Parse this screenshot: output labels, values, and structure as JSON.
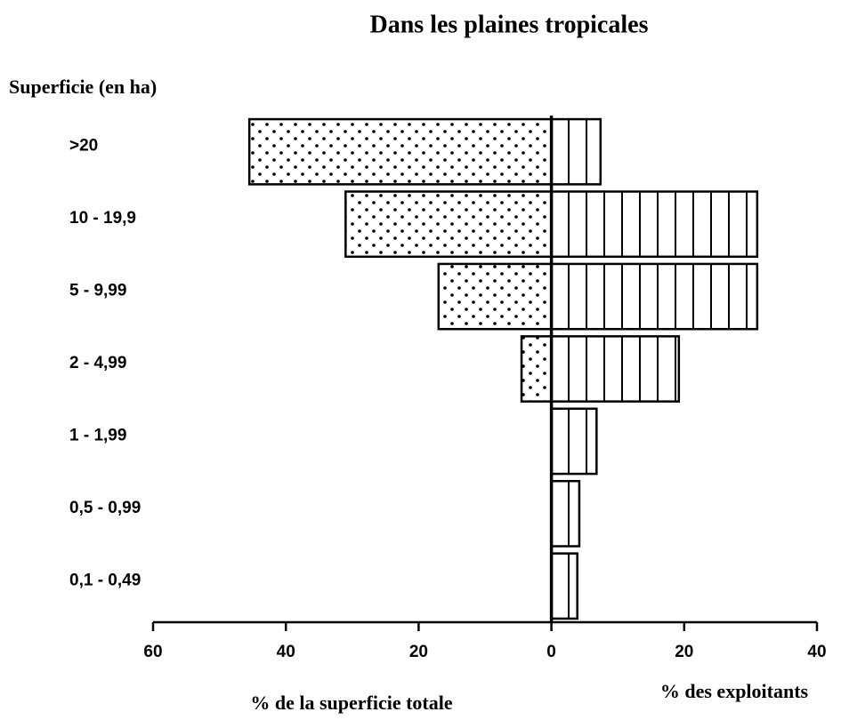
{
  "chart_data": {
    "type": "bar",
    "orientation": "horizontal",
    "title": "Dans les plaines tropicales",
    "y_label": "Superficie (en ha)",
    "x_label_left": "% de la superficie totale",
    "x_label_right": "% des exploitants",
    "categories": [
      ">20",
      "10 - 19,9",
      "5 - 9,99",
      "2 - 4,99",
      "1 - 1,99",
      "0,5 - 0,99",
      "0,1 - 0,49"
    ],
    "series": [
      {
        "color": "#000000",
        "pattern": "dots",
        "values": [
          -45.5,
          -31,
          -17,
          -4.5,
          0,
          0,
          0
        ]
      },
      {
        "color": "#000000",
        "pattern": "vertical-lines",
        "values": [
          7.4,
          31,
          31,
          19.2,
          6.8,
          4.2,
          3.9
        ]
      }
    ],
    "xlim": [
      -60,
      40
    ],
    "xticks": [
      {
        "value": -60,
        "label": "60"
      },
      {
        "value": -40,
        "label": "40"
      },
      {
        "value": -20,
        "label": "20"
      },
      0,
      20,
      40
    ]
  }
}
